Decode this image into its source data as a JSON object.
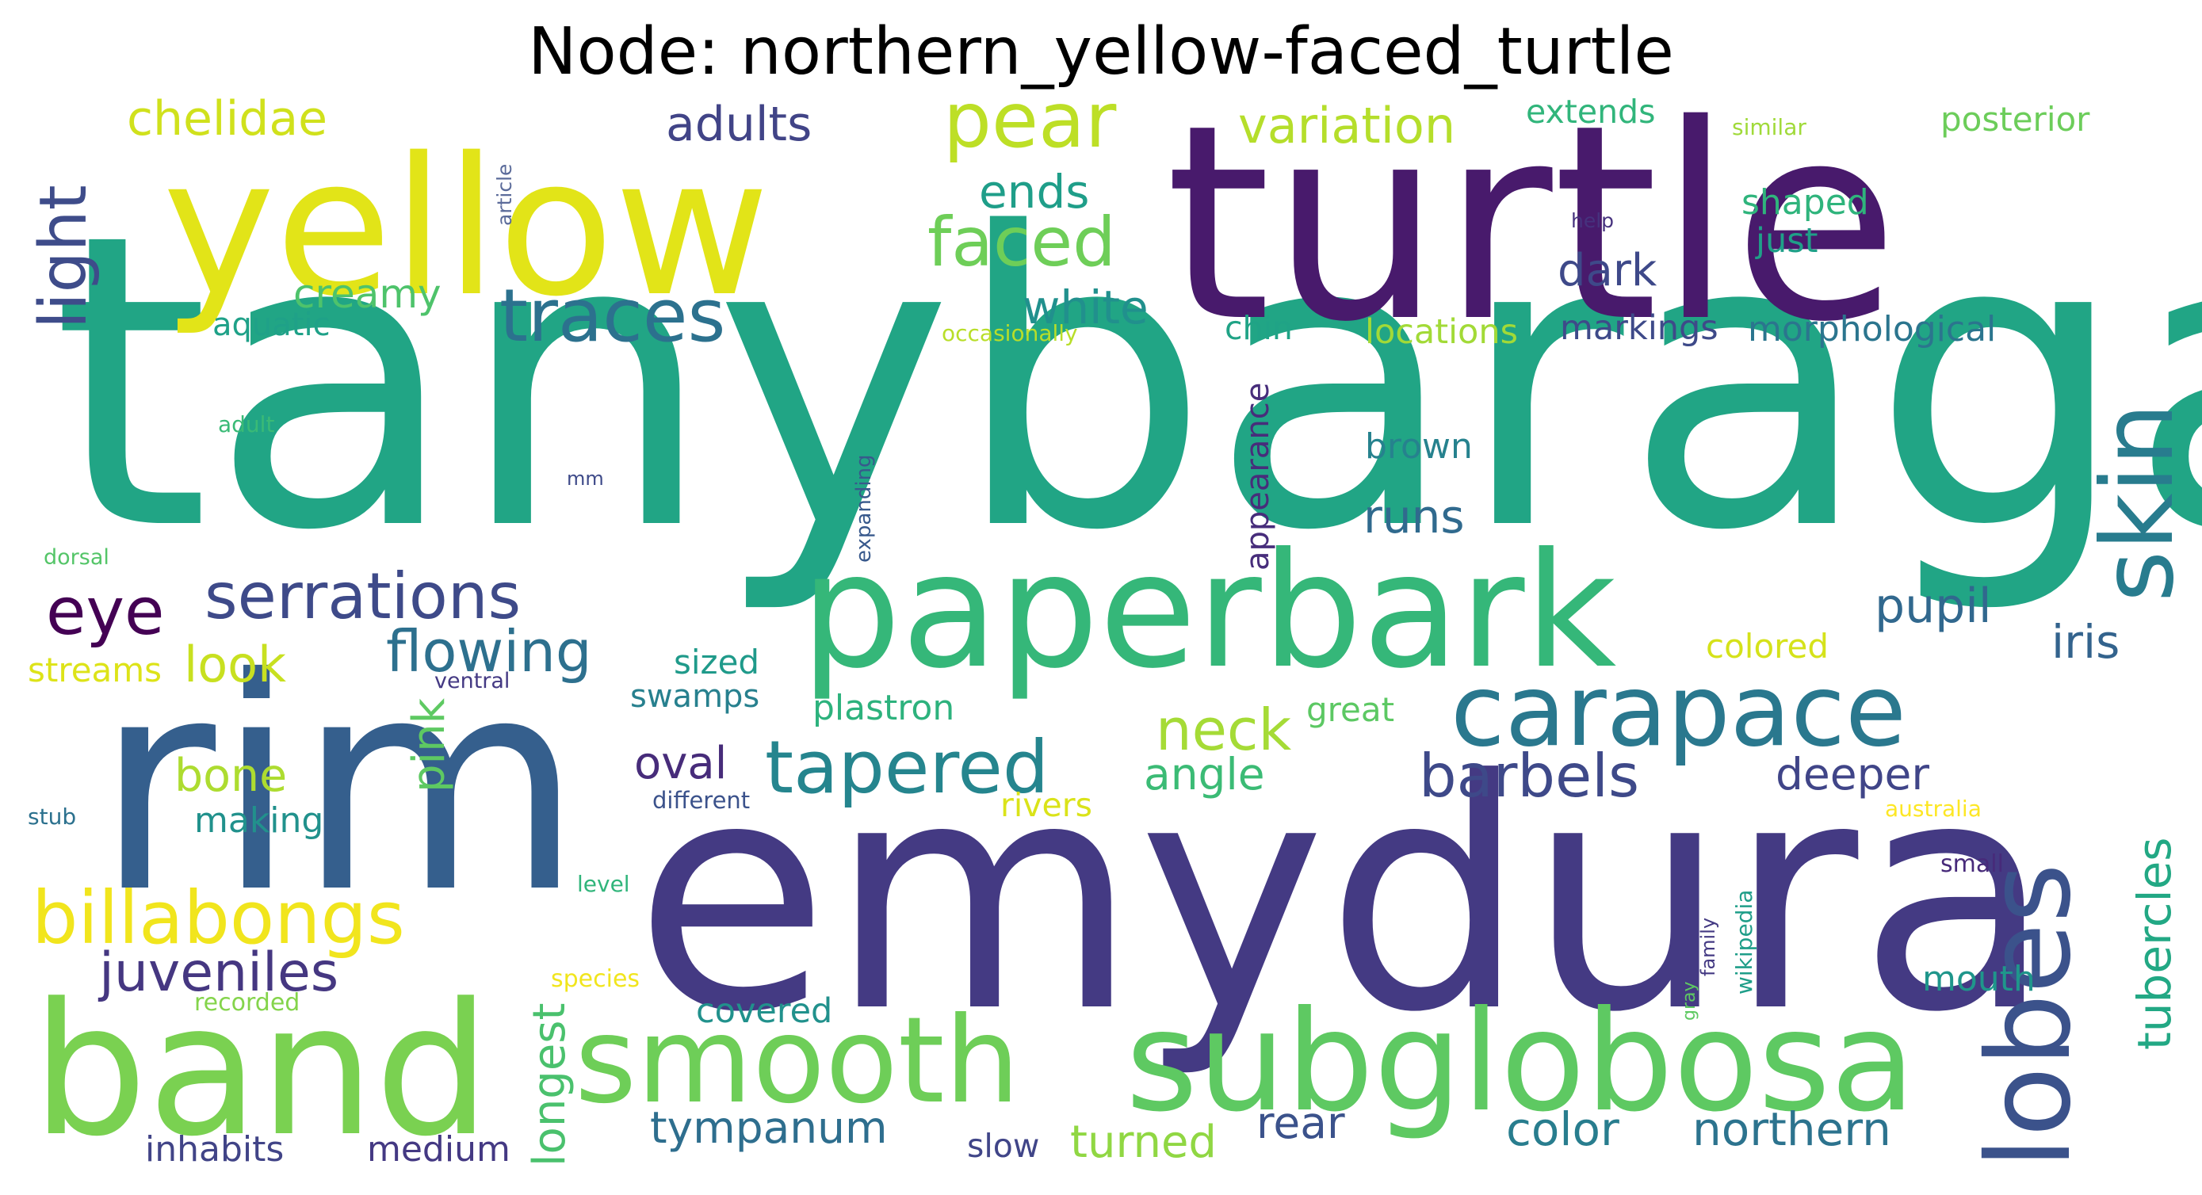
{
  "title": "Node: northern_yellow-faced_turtle",
  "words": [
    {
      "text": "tanybaraga",
      "color": "#21a585"
    },
    {
      "text": "turtle",
      "color": "#481a6c"
    },
    {
      "text": "emydura",
      "color": "#443a83"
    },
    {
      "text": "rim",
      "color": "#355f8d"
    },
    {
      "text": "yellow",
      "color": "#e2e418"
    },
    {
      "text": "paperbark",
      "color": "#35b779"
    },
    {
      "text": "band",
      "color": "#7ad151"
    },
    {
      "text": "subglobosa",
      "color": "#5ec962"
    },
    {
      "text": "smooth",
      "color": "#6ece58"
    },
    {
      "text": "lobes",
      "color": "#3b528b"
    },
    {
      "text": "skin",
      "color": "#287c8e"
    },
    {
      "text": "carapace",
      "color": "#2a788e"
    },
    {
      "text": "traces",
      "color": "#2c718e"
    },
    {
      "text": "tapered",
      "color": "#25858e"
    },
    {
      "text": "billabongs",
      "color": "#f1e51d"
    },
    {
      "text": "serrations",
      "color": "#3e4a89"
    },
    {
      "text": "pear",
      "color": "#bddf26"
    },
    {
      "text": "faced",
      "color": "#6ece58"
    },
    {
      "text": "barbels",
      "color": "#3e4989"
    },
    {
      "text": "flowing",
      "color": "#2d708e"
    },
    {
      "text": "juveniles",
      "color": "#453781"
    },
    {
      "text": "eye",
      "color": "#440154"
    },
    {
      "text": "light",
      "color": "#3e4c8a"
    },
    {
      "text": "neck",
      "color": "#a5db36"
    },
    {
      "text": "tympanum",
      "color": "#2e6e8e"
    },
    {
      "text": "color",
      "color": "#287d8e"
    },
    {
      "text": "northern",
      "color": "#2c738e"
    },
    {
      "text": "adults",
      "color": "#414487"
    },
    {
      "text": "chelidae",
      "color": "#d0e11c"
    },
    {
      "text": "white",
      "color": "#21908d"
    },
    {
      "text": "ends",
      "color": "#1f9e89"
    },
    {
      "text": "variation",
      "color": "#b5de2b"
    },
    {
      "text": "deeper",
      "color": "#404588"
    },
    {
      "text": "angle",
      "color": "#3bbb75"
    },
    {
      "text": "oval",
      "color": "#472c7a"
    },
    {
      "text": "pupil",
      "color": "#31688e"
    },
    {
      "text": "iris",
      "color": "#33638d"
    },
    {
      "text": "tubercles",
      "color": "#22a884"
    },
    {
      "text": "longest",
      "color": "#4ac16d"
    },
    {
      "text": "pink",
      "color": "#5ec962"
    },
    {
      "text": "look",
      "color": "#c8e020"
    },
    {
      "text": "bone",
      "color": "#addc30"
    },
    {
      "text": "dark",
      "color": "#3e4989"
    },
    {
      "text": "creamy",
      "color": "#4ec36b"
    },
    {
      "text": "runs",
      "color": "#306a8e"
    },
    {
      "text": "turned",
      "color": "#90d743"
    },
    {
      "text": "rear",
      "color": "#3b528b"
    },
    {
      "text": "appearance",
      "color": "#472d7b"
    },
    {
      "text": "brown",
      "color": "#26828e"
    },
    {
      "text": "mouth",
      "color": "#1f968b"
    },
    {
      "text": "medium",
      "color": "#443983"
    },
    {
      "text": "inhabits",
      "color": "#414487"
    },
    {
      "text": "covered",
      "color": "#21918c"
    },
    {
      "text": "making",
      "color": "#21918c"
    },
    {
      "text": "streams",
      "color": "#dde318"
    },
    {
      "text": "aquatic",
      "color": "#1fa188"
    },
    {
      "text": "sized",
      "color": "#1f9a8a"
    },
    {
      "text": "plastron",
      "color": "#2db27d"
    },
    {
      "text": "swamps",
      "color": "#27808e"
    },
    {
      "text": "chin",
      "color": "#20a386"
    },
    {
      "text": "locations",
      "color": "#a2da37"
    },
    {
      "text": "markings",
      "color": "#3e4a89"
    },
    {
      "text": "morphological",
      "color": "#2b758e"
    },
    {
      "text": "shaped",
      "color": "#2fb47c"
    },
    {
      "text": "just",
      "color": "#1fa088"
    },
    {
      "text": "extends",
      "color": "#31b57b"
    },
    {
      "text": "posterior",
      "color": "#6ccd5a"
    },
    {
      "text": "colored",
      "color": "#d5e21a"
    },
    {
      "text": "great",
      "color": "#5cc863"
    },
    {
      "text": "rivers",
      "color": "#dae319"
    },
    {
      "text": "slow",
      "color": "#404588"
    },
    {
      "text": "small",
      "color": "#472a7a"
    },
    {
      "text": "australia",
      "color": "#fde725"
    },
    {
      "text": "similar",
      "color": "#a0da39"
    },
    {
      "text": "help",
      "color": "#46327e"
    },
    {
      "text": "article",
      "color": "#5b6b9a"
    },
    {
      "text": "occasionally",
      "color": "#b8de29"
    },
    {
      "text": "expanding",
      "color": "#38598c"
    },
    {
      "text": "adult",
      "color": "#3aba76"
    },
    {
      "text": "mm",
      "color": "#3e4a89"
    },
    {
      "text": "dorsal",
      "color": "#54c568"
    },
    {
      "text": "ventral",
      "color": "#443983"
    },
    {
      "text": "stub",
      "color": "#2c718e"
    },
    {
      "text": "different",
      "color": "#3b528b"
    },
    {
      "text": "level",
      "color": "#31b57b"
    },
    {
      "text": "species",
      "color": "#f1e51d"
    },
    {
      "text": "recorded",
      "color": "#84d44b"
    },
    {
      "text": "gray",
      "color": "#5ec962"
    },
    {
      "text": "family",
      "color": "#443a83"
    },
    {
      "text": "wikipedia",
      "color": "#1f9e89"
    }
  ]
}
